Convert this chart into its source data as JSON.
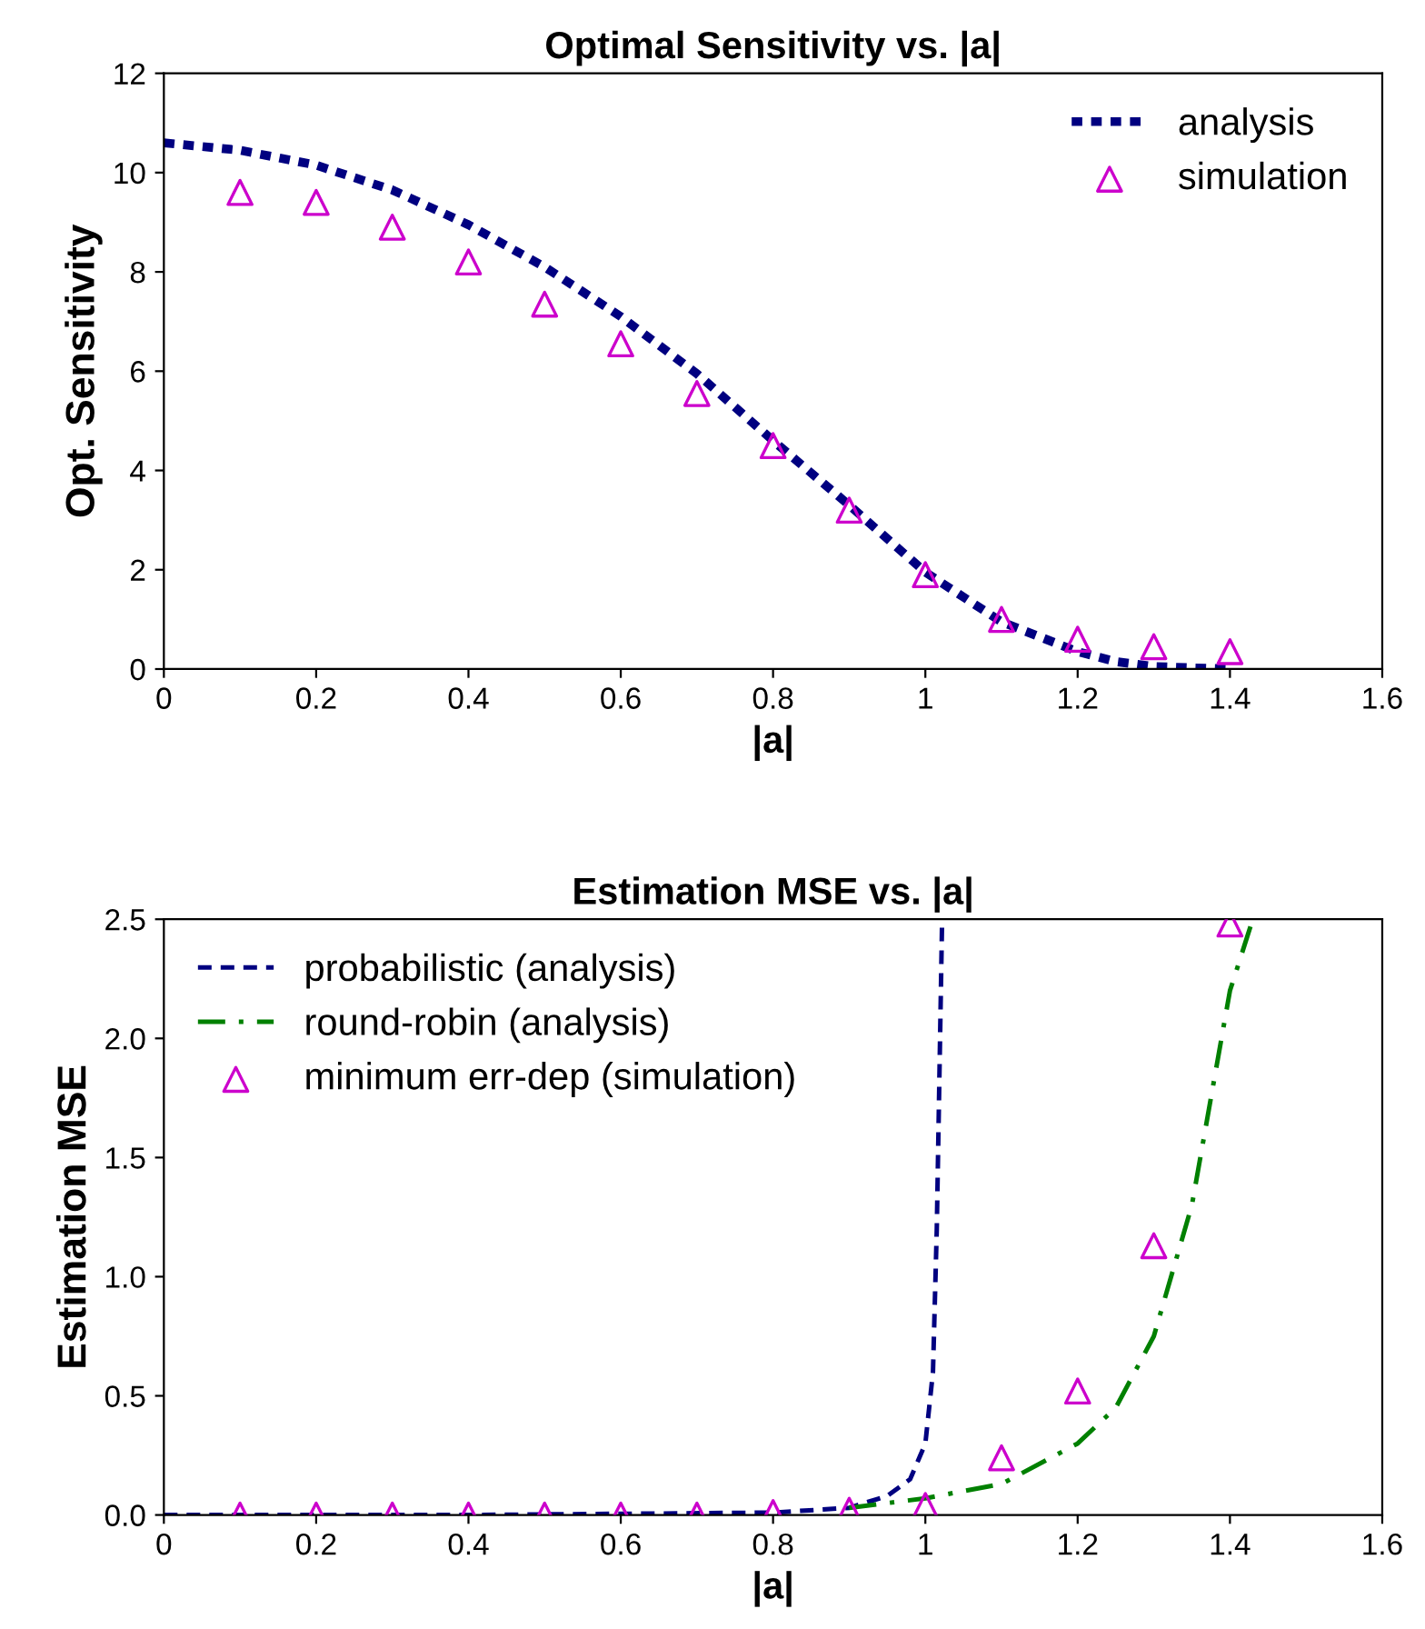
{
  "chart_data": [
    {
      "type": "line",
      "title": "Optimal Sensitivity vs. |a|",
      "xlabel": "|a|",
      "ylabel": "Opt. Sensitivity",
      "xlim": [
        0,
        1.6
      ],
      "xticks": [
        0,
        0.2,
        0.4,
        0.6,
        0.8,
        1,
        1.2,
        1.4,
        1.6
      ],
      "ylim": [
        0,
        12
      ],
      "yticks": [
        0,
        2,
        4,
        6,
        8,
        10,
        12
      ],
      "grid": false,
      "legend": "top right",
      "series": [
        {
          "name": "analysis",
          "color": "#000080",
          "line_style": "dashed",
          "marker": "none",
          "x": [
            0,
            0.1,
            0.2,
            0.3,
            0.4,
            0.5,
            0.6,
            0.7,
            0.8,
            0.9,
            1.0,
            1.1,
            1.2,
            1.25,
            1.3,
            1.4
          ],
          "values": [
            10.6,
            10.45,
            10.15,
            9.65,
            8.95,
            8.1,
            7.1,
            5.95,
            4.6,
            3.3,
            1.95,
            0.95,
            0.35,
            0.15,
            0.05,
            0.0
          ]
        },
        {
          "name": "simulation",
          "type": "scatter",
          "color": "#cc00cc",
          "marker": "triangle",
          "x": [
            0.1,
            0.2,
            0.3,
            0.4,
            0.5,
            0.6,
            0.7,
            0.8,
            0.9,
            1.0,
            1.1,
            1.2,
            1.3,
            1.4
          ],
          "values": [
            9.6,
            9.4,
            8.9,
            8.2,
            7.35,
            6.55,
            5.55,
            4.5,
            3.2,
            1.9,
            1.0,
            0.6,
            0.45,
            0.35
          ]
        }
      ]
    },
    {
      "type": "line",
      "title": "Estimation MSE vs. |a|",
      "xlabel": "|a|",
      "ylabel": "Estimation MSE",
      "xlim": [
        0,
        1.6
      ],
      "xticks": [
        0,
        0.2,
        0.4,
        0.6,
        0.8,
        1,
        1.2,
        1.4,
        1.6
      ],
      "ylim": [
        0,
        2.5
      ],
      "yticks": [
        {
          "value": 0,
          "label": "0.0"
        },
        {
          "value": 0.5,
          "label": "0.5"
        },
        {
          "value": 1,
          "label": "1.0"
        },
        {
          "value": 1.5,
          "label": "1.5"
        },
        {
          "value": 2,
          "label": "2.0"
        },
        {
          "value": 2.5,
          "label": "2.5"
        }
      ],
      "grid": false,
      "legend": "top left",
      "series": [
        {
          "name": "probabilistic (analysis)",
          "color": "#000080",
          "line_style": "dashed",
          "marker": "none",
          "x": [
            0,
            0.2,
            0.4,
            0.6,
            0.8,
            0.9,
            0.95,
            0.98,
            1.0,
            1.01,
            1.015,
            1.022
          ],
          "values": [
            0.0,
            0.0,
            0.0,
            0.005,
            0.01,
            0.03,
            0.08,
            0.15,
            0.3,
            0.6,
            1.2,
            2.5
          ]
        },
        {
          "name": "round-robin (analysis)",
          "color": "#008000",
          "line_style": "dashdot",
          "marker": "none",
          "x": [
            0.9,
            1.0,
            1.1,
            1.2,
            1.25,
            1.3,
            1.35,
            1.4,
            1.43
          ],
          "values": [
            0.03,
            0.07,
            0.13,
            0.3,
            0.45,
            0.75,
            1.3,
            2.2,
            2.5
          ]
        },
        {
          "name": "minimum err-dep (simulation)",
          "type": "scatter",
          "color": "#cc00cc",
          "marker": "triangle",
          "x": [
            0.1,
            0.2,
            0.3,
            0.4,
            0.5,
            0.6,
            0.7,
            0.8,
            0.9,
            1.0,
            1.1,
            1.2,
            1.3,
            1.4
          ],
          "values": [
            0.0,
            0.0,
            0.0,
            0.0,
            0.0,
            0.0,
            0.0,
            0.01,
            0.02,
            0.04,
            0.24,
            0.52,
            1.13,
            2.48
          ]
        }
      ]
    }
  ]
}
